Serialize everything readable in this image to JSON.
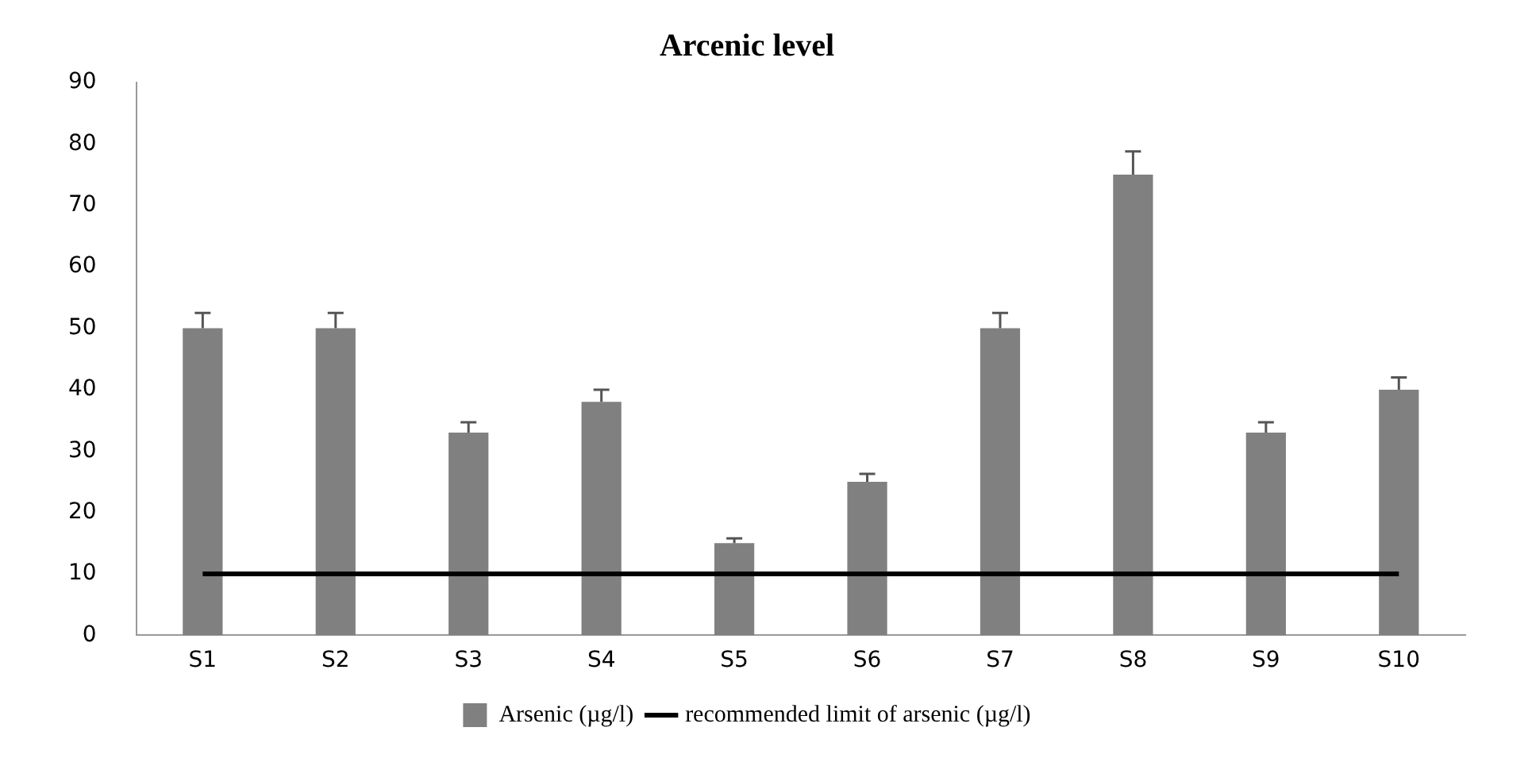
{
  "chart_data": {
    "type": "bar",
    "title": "Arcenic level",
    "categories": [
      "S1",
      "S2",
      "S3",
      "S4",
      "S5",
      "S6",
      "S7",
      "S8",
      "S9",
      "S10"
    ],
    "series": [
      {
        "name": "Arsenic (µg/l)",
        "color": "#808080",
        "values": [
          50,
          50,
          33,
          38,
          15,
          25,
          50,
          75,
          33,
          40
        ],
        "errors": [
          [
            50,
            52.5
          ],
          [
            50,
            52.5
          ],
          [
            33,
            34.7
          ],
          [
            38,
            40
          ],
          [
            15,
            15.8
          ],
          [
            25,
            26.3
          ],
          [
            50,
            52.5
          ],
          [
            75,
            78.8
          ],
          [
            33,
            34.7
          ],
          [
            40,
            42
          ]
        ]
      },
      {
        "name": "recommended limit of arsenic (µg/l)",
        "type": "line",
        "color": "#000000",
        "values": [
          10,
          10,
          10,
          10,
          10,
          10,
          10,
          10,
          10,
          10
        ]
      }
    ],
    "ylim": [
      0,
      90
    ],
    "yticks": [
      0,
      10,
      20,
      30,
      40,
      50,
      60,
      70,
      80,
      90
    ],
    "grid": false,
    "legend": "bottom",
    "marker": "none",
    "line_style": "solid"
  }
}
